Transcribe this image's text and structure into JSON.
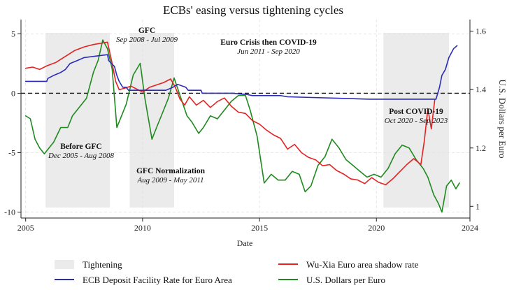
{
  "chart_data": {
    "type": "line",
    "title": "ECBs' easing versus tightening cycles",
    "xlabel": "Date",
    "ylabel_left": "",
    "ylabel_right": "U.S. Dollars per Euro",
    "xlim": [
      2004.8,
      2024.0
    ],
    "ylim_left": [
      -10.5,
      6.2
    ],
    "ylim_right": [
      0.96,
      1.64
    ],
    "x_ticks": [
      2005,
      2010,
      2015,
      2020,
      2024
    ],
    "x_tick_labels": [
      "2005",
      "2010",
      "2015",
      "2020",
      "2024"
    ],
    "y_left_ticks": [
      5,
      0,
      -5,
      -10
    ],
    "y_left_tick_labels": [
      "5",
      "0",
      "-5",
      "-10"
    ],
    "y_right_ticks": [
      1.6,
      1.4,
      1.2,
      1.0
    ],
    "y_right_tick_labels": [
      "1.6",
      "1.4",
      "1.2",
      "1"
    ],
    "grid": true,
    "zero_line": true,
    "legend_placement": "bottom",
    "colors": {
      "deposit_rate": "#2b2bb8",
      "shadow_rate": "#e32222",
      "usd_per_euro": "#1f8a1f",
      "tightening": "#ebebeb",
      "zero_line": "#111111",
      "grid": "#e2e2e2"
    },
    "shaded_periods": [
      {
        "start": 2005.85,
        "end": 2008.6
      },
      {
        "start": 2009.45,
        "end": 2011.35
      },
      {
        "start": 2020.3,
        "end": 2023.1
      }
    ],
    "annotations": [
      {
        "title": "GFC",
        "subtitle": "Sep 2008 - Jul 2009"
      },
      {
        "title": "Euro Crisis then COVID-19",
        "subtitle": "Jun 2011 - Sep 2020"
      },
      {
        "title": "Before GFC",
        "subtitle": "Dec 2005 - Aug 2008"
      },
      {
        "title": "GFC Normalization",
        "subtitle": "Aug 2009 - May 2011"
      },
      {
        "title": "Post COVID-19",
        "subtitle": "Oct 2020 - Sep 2023"
      }
    ],
    "legend": [
      {
        "label": "Tightening",
        "key": "tightening"
      },
      {
        "label": "Wu-Xia Euro area shadow rate",
        "key": "shadow_rate"
      },
      {
        "label": "ECB Deposit Facility Rate for Euro Area",
        "key": "deposit_rate"
      },
      {
        "label": "U.S. Dollars per Euro",
        "key": "usd_per_euro"
      }
    ],
    "series": [
      {
        "name": "ECB Deposit Facility Rate for Euro Area",
        "axis": "left",
        "x": [
          2005.0,
          2005.9,
          2005.95,
          2006.2,
          2006.5,
          2006.7,
          2006.9,
          2007.2,
          2007.5,
          2008.5,
          2008.55,
          2008.8,
          2008.9,
          2009.0,
          2009.15,
          2009.3,
          2009.4,
          2011.0,
          2011.3,
          2011.5,
          2011.85,
          2011.95,
          2012.5,
          2012.55,
          2013.85,
          2014.4,
          2014.45,
          2014.7,
          2015.9,
          2016.2,
          2019.7,
          2022.55,
          2022.7,
          2022.8,
          2022.95,
          2023.1,
          2023.3,
          2023.45
        ],
        "values": [
          1.0,
          1.0,
          1.25,
          1.5,
          1.75,
          2.0,
          2.5,
          2.75,
          3.0,
          3.25,
          2.75,
          2.25,
          1.5,
          1.0,
          0.5,
          0.5,
          0.25,
          0.25,
          0.5,
          0.75,
          0.5,
          0.25,
          0.25,
          0.0,
          0.0,
          -0.1,
          -0.1,
          -0.2,
          -0.2,
          -0.3,
          -0.5,
          -0.5,
          0.5,
          1.5,
          2.0,
          3.0,
          3.75,
          4.0
        ]
      },
      {
        "name": "Wu-Xia Euro area shadow rate",
        "axis": "left",
        "x": [
          2005.0,
          2005.3,
          2005.6,
          2005.9,
          2006.3,
          2006.7,
          2007.1,
          2007.5,
          2007.9,
          2008.2,
          2008.5,
          2008.7,
          2008.85,
          2009.0,
          2009.2,
          2009.5,
          2009.8,
          2010.0,
          2010.3,
          2010.6,
          2010.9,
          2011.2,
          2011.4,
          2011.6,
          2011.8,
          2012.0,
          2012.3,
          2012.6,
          2012.9,
          2013.2,
          2013.5,
          2013.8,
          2014.1,
          2014.4,
          2014.7,
          2015.0,
          2015.3,
          2015.6,
          2015.9,
          2016.2,
          2016.5,
          2016.8,
          2017.1,
          2017.4,
          2017.7,
          2018.0,
          2018.3,
          2018.6,
          2018.9,
          2019.2,
          2019.5,
          2019.8,
          2020.1,
          2020.4,
          2020.7,
          2021.0,
          2021.3,
          2021.6,
          2021.9,
          2022.05,
          2022.2,
          2022.35,
          2022.5
        ],
        "values": [
          2.1,
          2.2,
          2.0,
          2.3,
          2.6,
          3.1,
          3.6,
          3.9,
          4.1,
          4.2,
          4.3,
          2.5,
          1.0,
          0.3,
          0.4,
          0.6,
          0.3,
          0.1,
          0.5,
          0.7,
          0.9,
          1.2,
          0.5,
          -0.5,
          -1.0,
          -0.3,
          -1.0,
          -0.6,
          -1.2,
          -0.7,
          -0.4,
          -1.1,
          -1.6,
          -1.7,
          -2.3,
          -2.6,
          -3.1,
          -3.5,
          -3.8,
          -4.7,
          -4.3,
          -5.0,
          -5.4,
          -5.6,
          -6.1,
          -6.0,
          -6.5,
          -6.8,
          -7.2,
          -7.3,
          -7.6,
          -7.1,
          -7.5,
          -7.7,
          -7.2,
          -6.6,
          -6.0,
          -5.5,
          -6.0,
          -4.0,
          -1.3,
          -3.0,
          -0.5
        ]
      },
      {
        "name": "U.S. Dollars per Euro",
        "axis": "right",
        "x": [
          2005.0,
          2005.2,
          2005.4,
          2005.6,
          2005.8,
          2006.0,
          2006.2,
          2006.5,
          2006.8,
          2007.0,
          2007.3,
          2007.6,
          2007.9,
          2008.1,
          2008.3,
          2008.5,
          2008.7,
          2008.9,
          2009.1,
          2009.3,
          2009.6,
          2009.9,
          2010.1,
          2010.4,
          2010.6,
          2010.9,
          2011.1,
          2011.35,
          2011.6,
          2011.9,
          2012.1,
          2012.4,
          2012.6,
          2012.9,
          2013.2,
          2013.5,
          2013.8,
          2014.1,
          2014.4,
          2014.6,
          2014.9,
          2015.05,
          2015.2,
          2015.5,
          2015.8,
          2016.1,
          2016.4,
          2016.7,
          2016.95,
          2017.2,
          2017.5,
          2017.8,
          2018.1,
          2018.4,
          2018.7,
          2019.0,
          2019.3,
          2019.6,
          2019.9,
          2020.2,
          2020.5,
          2020.8,
          2021.1,
          2021.4,
          2021.7,
          2022.0,
          2022.2,
          2022.45,
          2022.65,
          2022.8,
          2023.0,
          2023.2,
          2023.4,
          2023.55
        ],
        "values": [
          1.31,
          1.3,
          1.23,
          1.2,
          1.18,
          1.2,
          1.22,
          1.27,
          1.27,
          1.31,
          1.34,
          1.37,
          1.46,
          1.5,
          1.57,
          1.54,
          1.47,
          1.27,
          1.31,
          1.35,
          1.45,
          1.49,
          1.37,
          1.23,
          1.27,
          1.33,
          1.37,
          1.44,
          1.38,
          1.31,
          1.29,
          1.25,
          1.27,
          1.31,
          1.3,
          1.33,
          1.36,
          1.38,
          1.38,
          1.33,
          1.24,
          1.16,
          1.08,
          1.11,
          1.09,
          1.09,
          1.12,
          1.11,
          1.05,
          1.07,
          1.14,
          1.17,
          1.23,
          1.2,
          1.16,
          1.14,
          1.12,
          1.1,
          1.11,
          1.1,
          1.13,
          1.18,
          1.21,
          1.2,
          1.16,
          1.13,
          1.1,
          1.04,
          1.01,
          0.98,
          1.07,
          1.09,
          1.06,
          1.08
        ]
      }
    ]
  }
}
